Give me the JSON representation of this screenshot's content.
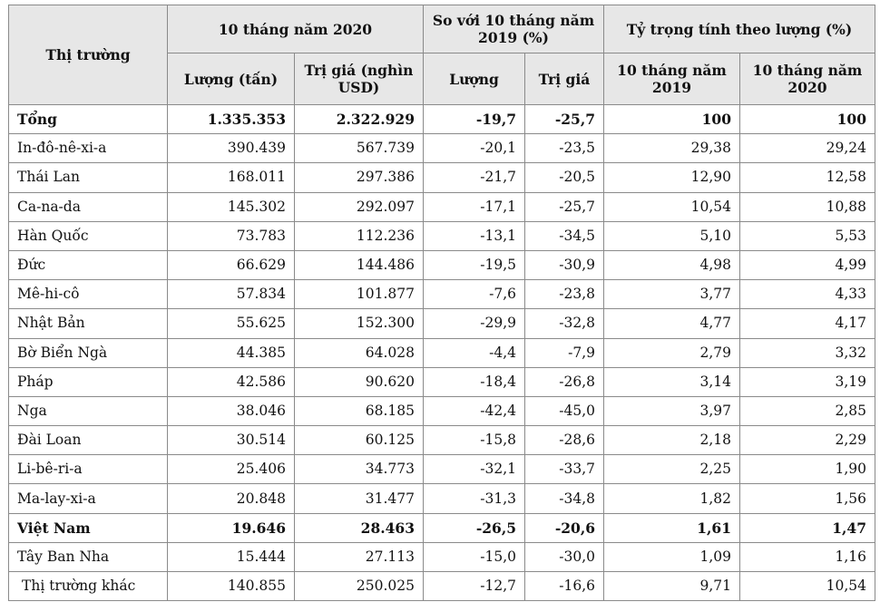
{
  "table": {
    "header": {
      "market": "Thị trường",
      "group_2020": "10 tháng năm 2020",
      "group_compare": "So với 10 tháng năm 2019 (%)",
      "group_share": "Tỷ trọng tính theo lượng (%)",
      "sub_volume": "Lượng (tấn)",
      "sub_value": "Trị giá (nghìn USD)",
      "sub_cmp_volume": "Lượng",
      "sub_cmp_value": "Trị giá",
      "sub_share_2019": "10 tháng năm 2019",
      "sub_share_2020": "10 tháng năm 2020"
    },
    "rows": [
      {
        "market": "Tổng",
        "volume": "1.335.353",
        "value": "2.322.929",
        "cmp_volume": "-19,7",
        "cmp_value": "-25,7",
        "share_2019": "100",
        "share_2020": "100",
        "bold": true
      },
      {
        "market": "In-đô-nê-xi-a",
        "volume": "390.439",
        "value": "567.739",
        "cmp_volume": "-20,1",
        "cmp_value": "-23,5",
        "share_2019": "29,38",
        "share_2020": "29,24"
      },
      {
        "market": "Thái Lan",
        "volume": "168.011",
        "value": "297.386",
        "cmp_volume": "-21,7",
        "cmp_value": "-20,5",
        "share_2019": "12,90",
        "share_2020": "12,58"
      },
      {
        "market": "Ca-na-da",
        "volume": "145.302",
        "value": "292.097",
        "cmp_volume": "-17,1",
        "cmp_value": "-25,7",
        "share_2019": "10,54",
        "share_2020": "10,88"
      },
      {
        "market": "Hàn Quốc",
        "volume": "73.783",
        "value": "112.236",
        "cmp_volume": "-13,1",
        "cmp_value": "-34,5",
        "share_2019": "5,10",
        "share_2020": "5,53"
      },
      {
        "market": "Đức",
        "volume": "66.629",
        "value": "144.486",
        "cmp_volume": "-19,5",
        "cmp_value": "-30,9",
        "share_2019": "4,98",
        "share_2020": "4,99"
      },
      {
        "market": "Mê-hi-cô",
        "volume": "57.834",
        "value": "101.877",
        "cmp_volume": "-7,6",
        "cmp_value": "-23,8",
        "share_2019": "3,77",
        "share_2020": "4,33"
      },
      {
        "market": "Nhật Bản",
        "volume": "55.625",
        "value": "152.300",
        "cmp_volume": "-29,9",
        "cmp_value": "-32,8",
        "share_2019": "4,77",
        "share_2020": "4,17"
      },
      {
        "market": "Bờ Biển Ngà",
        "volume": "44.385",
        "value": "64.028",
        "cmp_volume": "-4,4",
        "cmp_value": "-7,9",
        "share_2019": "2,79",
        "share_2020": "3,32"
      },
      {
        "market": "Pháp",
        "volume": "42.586",
        "value": "90.620",
        "cmp_volume": "-18,4",
        "cmp_value": "-26,8",
        "share_2019": "3,14",
        "share_2020": "3,19"
      },
      {
        "market": "Nga",
        "volume": "38.046",
        "value": "68.185",
        "cmp_volume": "-42,4",
        "cmp_value": "-45,0",
        "share_2019": "3,97",
        "share_2020": "2,85"
      },
      {
        "market": "Đài Loan",
        "volume": "30.514",
        "value": "60.125",
        "cmp_volume": "-15,8",
        "cmp_value": "-28,6",
        "share_2019": "2,18",
        "share_2020": "2,29"
      },
      {
        "market": "Li-bê-ri-a",
        "volume": "25.406",
        "value": "34.773",
        "cmp_volume": "-32,1",
        "cmp_value": "-33,7",
        "share_2019": "2,25",
        "share_2020": "1,90"
      },
      {
        "market": "Ma-lay-xi-a",
        "volume": "20.848",
        "value": "31.477",
        "cmp_volume": "-31,3",
        "cmp_value": "-34,8",
        "share_2019": "1,82",
        "share_2020": "1,56"
      },
      {
        "market": "Việt Nam",
        "volume": "19.646",
        "value": "28.463",
        "cmp_volume": "-26,5",
        "cmp_value": "-20,6",
        "share_2019": "1,61",
        "share_2020": "1,47",
        "bold": true
      },
      {
        "market": "Tây Ban Nha",
        "volume": "15.444",
        "value": "27.113",
        "cmp_volume": "-15,0",
        "cmp_value": "-30,0",
        "share_2019": "1,09",
        "share_2020": "1,16"
      },
      {
        "market": "Thị trường khác",
        "volume": "140.855",
        "value": "250.025",
        "cmp_volume": "-12,7",
        "cmp_value": "-16,6",
        "share_2019": "9,71",
        "share_2020": "10,54",
        "indent": true
      }
    ]
  }
}
